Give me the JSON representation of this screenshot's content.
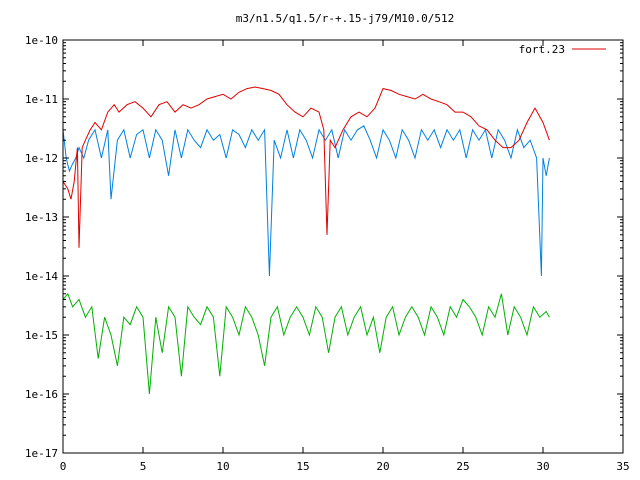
{
  "chart_data": {
    "type": "line",
    "title": "m3/n1.5/q1.5/r-+.15-j79/M10.0/512",
    "xlabel": "",
    "ylabel": "",
    "xlim": [
      0,
      35
    ],
    "ylim": [
      1e-17,
      1e-10
    ],
    "yscale": "log",
    "grid": false,
    "legend_position": "top-right",
    "x_ticks": [
      0,
      5,
      10,
      15,
      20,
      25,
      30,
      35
    ],
    "x_tick_labels": [
      "0",
      "5",
      "10",
      "15",
      "20",
      "25",
      "30",
      "35"
    ],
    "y_ticks": [
      1e-17,
      1e-16,
      1e-15,
      1e-14,
      1e-13,
      1e-12,
      1e-11,
      1e-10
    ],
    "y_tick_labels": [
      "1e-17",
      "1e-16",
      "1e-15",
      "1e-14",
      "1e-13",
      "1e-12",
      "1e-11",
      "1e-10"
    ],
    "series": [
      {
        "name": "fort.23",
        "color": "#e00000",
        "x": [
          0,
          0.3,
          0.5,
          0.7,
          0.9,
          1.0,
          1.2,
          1.4,
          1.7,
          2.0,
          2.4,
          2.8,
          3.2,
          3.5,
          4.0,
          4.5,
          5.0,
          5.5,
          6.0,
          6.5,
          7.0,
          7.5,
          8.0,
          8.5,
          9.0,
          9.5,
          10.0,
          10.5,
          11.0,
          11.5,
          12.0,
          12.5,
          13.0,
          13.5,
          14.0,
          14.5,
          15.0,
          15.5,
          16.0,
          16.3,
          16.5,
          16.7,
          17.0,
          17.5,
          18.0,
          18.5,
          19.0,
          19.5,
          20.0,
          20.5,
          21.0,
          21.5,
          22.0,
          22.5,
          23.0,
          23.5,
          24.0,
          24.5,
          25.0,
          25.5,
          26.0,
          26.5,
          27.0,
          27.5,
          28.0,
          28.5,
          29.0,
          29.5,
          30.0,
          30.4
        ],
        "y": [
          4e-13,
          3e-13,
          2e-13,
          4e-13,
          1.5e-12,
          3e-14,
          1.5e-12,
          2e-12,
          3e-12,
          4e-12,
          3e-12,
          6e-12,
          8e-12,
          6e-12,
          8e-12,
          9e-12,
          7e-12,
          5e-12,
          8e-12,
          9e-12,
          6e-12,
          8e-12,
          7e-12,
          8e-12,
          1e-11,
          1.1e-11,
          1.2e-11,
          1e-11,
          1.3e-11,
          1.5e-11,
          1.6e-11,
          1.5e-11,
          1.4e-11,
          1.2e-11,
          8e-12,
          6e-12,
          5e-12,
          7e-12,
          6e-12,
          3e-12,
          5e-14,
          2e-12,
          1.5e-12,
          3e-12,
          5e-12,
          6e-12,
          5e-12,
          7e-12,
          1.5e-11,
          1.4e-11,
          1.2e-11,
          1.1e-11,
          1e-11,
          1.2e-11,
          1e-11,
          9e-12,
          8e-12,
          6e-12,
          6e-12,
          5e-12,
          3.5e-12,
          3e-12,
          2e-12,
          1.5e-12,
          1.5e-12,
          2e-12,
          4e-12,
          7e-12,
          4e-12,
          2e-12
        ]
      },
      {
        "color": "#0080e0",
        "x": [
          0,
          0.2,
          0.4,
          0.6,
          0.8,
          1.0,
          1.3,
          1.6,
          2.0,
          2.4,
          2.8,
          3.0,
          3.4,
          3.8,
          4.2,
          4.6,
          5.0,
          5.4,
          5.8,
          6.2,
          6.6,
          7.0,
          7.4,
          7.8,
          8.2,
          8.6,
          9.0,
          9.4,
          9.8,
          10.2,
          10.6,
          11.0,
          11.4,
          11.8,
          12.2,
          12.6,
          12.9,
          13.2,
          13.6,
          14.0,
          14.4,
          14.8,
          15.2,
          15.6,
          16.0,
          16.4,
          16.8,
          17.2,
          17.6,
          18.0,
          18.4,
          18.8,
          19.2,
          19.6,
          20.0,
          20.4,
          20.8,
          21.2,
          21.6,
          22.0,
          22.4,
          22.8,
          23.2,
          23.6,
          24.0,
          24.4,
          24.8,
          25.2,
          25.6,
          26.0,
          26.4,
          26.8,
          27.2,
          27.6,
          28.0,
          28.4,
          28.8,
          29.2,
          29.6,
          29.9,
          30.0,
          30.2,
          30.4
        ],
        "y": [
          3e-12,
          1e-12,
          6e-13,
          8e-13,
          1e-12,
          1.5e-12,
          1e-12,
          2e-12,
          3e-12,
          1e-12,
          3e-12,
          2e-13,
          2e-12,
          3e-12,
          1e-12,
          2.5e-12,
          3e-12,
          1e-12,
          3e-12,
          2e-12,
          5e-13,
          3e-12,
          1e-12,
          3e-12,
          2e-12,
          1.5e-12,
          3e-12,
          2e-12,
          2.5e-12,
          1e-12,
          3e-12,
          2.5e-12,
          1.5e-12,
          3e-12,
          2e-12,
          3e-12,
          1e-14,
          2e-12,
          1e-12,
          3e-12,
          1e-12,
          3e-12,
          2e-12,
          1e-12,
          3e-12,
          2e-12,
          3e-12,
          1e-12,
          3e-12,
          2e-12,
          3e-12,
          3.5e-12,
          2e-12,
          1e-12,
          3e-12,
          2e-12,
          1e-12,
          3e-12,
          2e-12,
          1e-12,
          3e-12,
          2e-12,
          3e-12,
          1.5e-12,
          3e-12,
          2e-12,
          3e-12,
          1e-12,
          3e-12,
          2e-12,
          3e-12,
          1e-12,
          3e-12,
          2e-12,
          1e-12,
          3e-12,
          1.5e-12,
          2e-12,
          1e-12,
          1e-14,
          1e-12,
          5e-13,
          1e-12
        ]
      },
      {
        "color": "#00b000",
        "x": [
          0,
          0.3,
          0.6,
          1.0,
          1.4,
          1.8,
          2.2,
          2.6,
          3.0,
          3.4,
          3.8,
          4.2,
          4.6,
          5.0,
          5.4,
          5.8,
          6.2,
          6.6,
          7.0,
          7.4,
          7.8,
          8.2,
          8.6,
          9.0,
          9.4,
          9.8,
          10.2,
          10.6,
          11.0,
          11.4,
          11.8,
          12.2,
          12.6,
          13.0,
          13.4,
          13.8,
          14.2,
          14.6,
          15.0,
          15.4,
          15.8,
          16.2,
          16.6,
          17.0,
          17.4,
          17.8,
          18.2,
          18.6,
          19.0,
          19.4,
          19.8,
          20.2,
          20.6,
          21.0,
          21.4,
          21.8,
          22.2,
          22.6,
          23.0,
          23.4,
          23.8,
          24.2,
          24.6,
          25.0,
          25.4,
          25.8,
          26.2,
          26.6,
          27.0,
          27.4,
          27.8,
          28.2,
          28.6,
          29.0,
          29.4,
          29.8,
          30.2,
          30.4
        ],
        "y": [
          4e-15,
          5e-15,
          3e-15,
          4e-15,
          2e-15,
          3e-15,
          4e-16,
          2e-15,
          1e-15,
          3e-16,
          2e-15,
          1.5e-15,
          3e-15,
          2e-15,
          1e-16,
          2e-15,
          5e-16,
          3e-15,
          2e-15,
          2e-16,
          3e-15,
          2e-15,
          1.5e-15,
          3e-15,
          2e-15,
          2e-16,
          3e-15,
          2e-15,
          1e-15,
          3e-15,
          2e-15,
          1e-15,
          3e-16,
          2e-15,
          3e-15,
          1e-15,
          2e-15,
          3e-15,
          2e-15,
          1e-15,
          3e-15,
          2e-15,
          5e-16,
          2e-15,
          3e-15,
          1e-15,
          2e-15,
          3e-15,
          1e-15,
          2e-15,
          5e-16,
          2e-15,
          3e-15,
          1e-15,
          2e-15,
          3e-15,
          2e-15,
          1e-15,
          3e-15,
          2e-15,
          1e-15,
          3e-15,
          2e-15,
          4e-15,
          3e-15,
          2e-15,
          1e-15,
          3e-15,
          2e-15,
          5e-15,
          1e-15,
          3e-15,
          2e-15,
          1e-15,
          3e-15,
          2e-15,
          2.5e-15,
          2e-15
        ]
      }
    ]
  }
}
